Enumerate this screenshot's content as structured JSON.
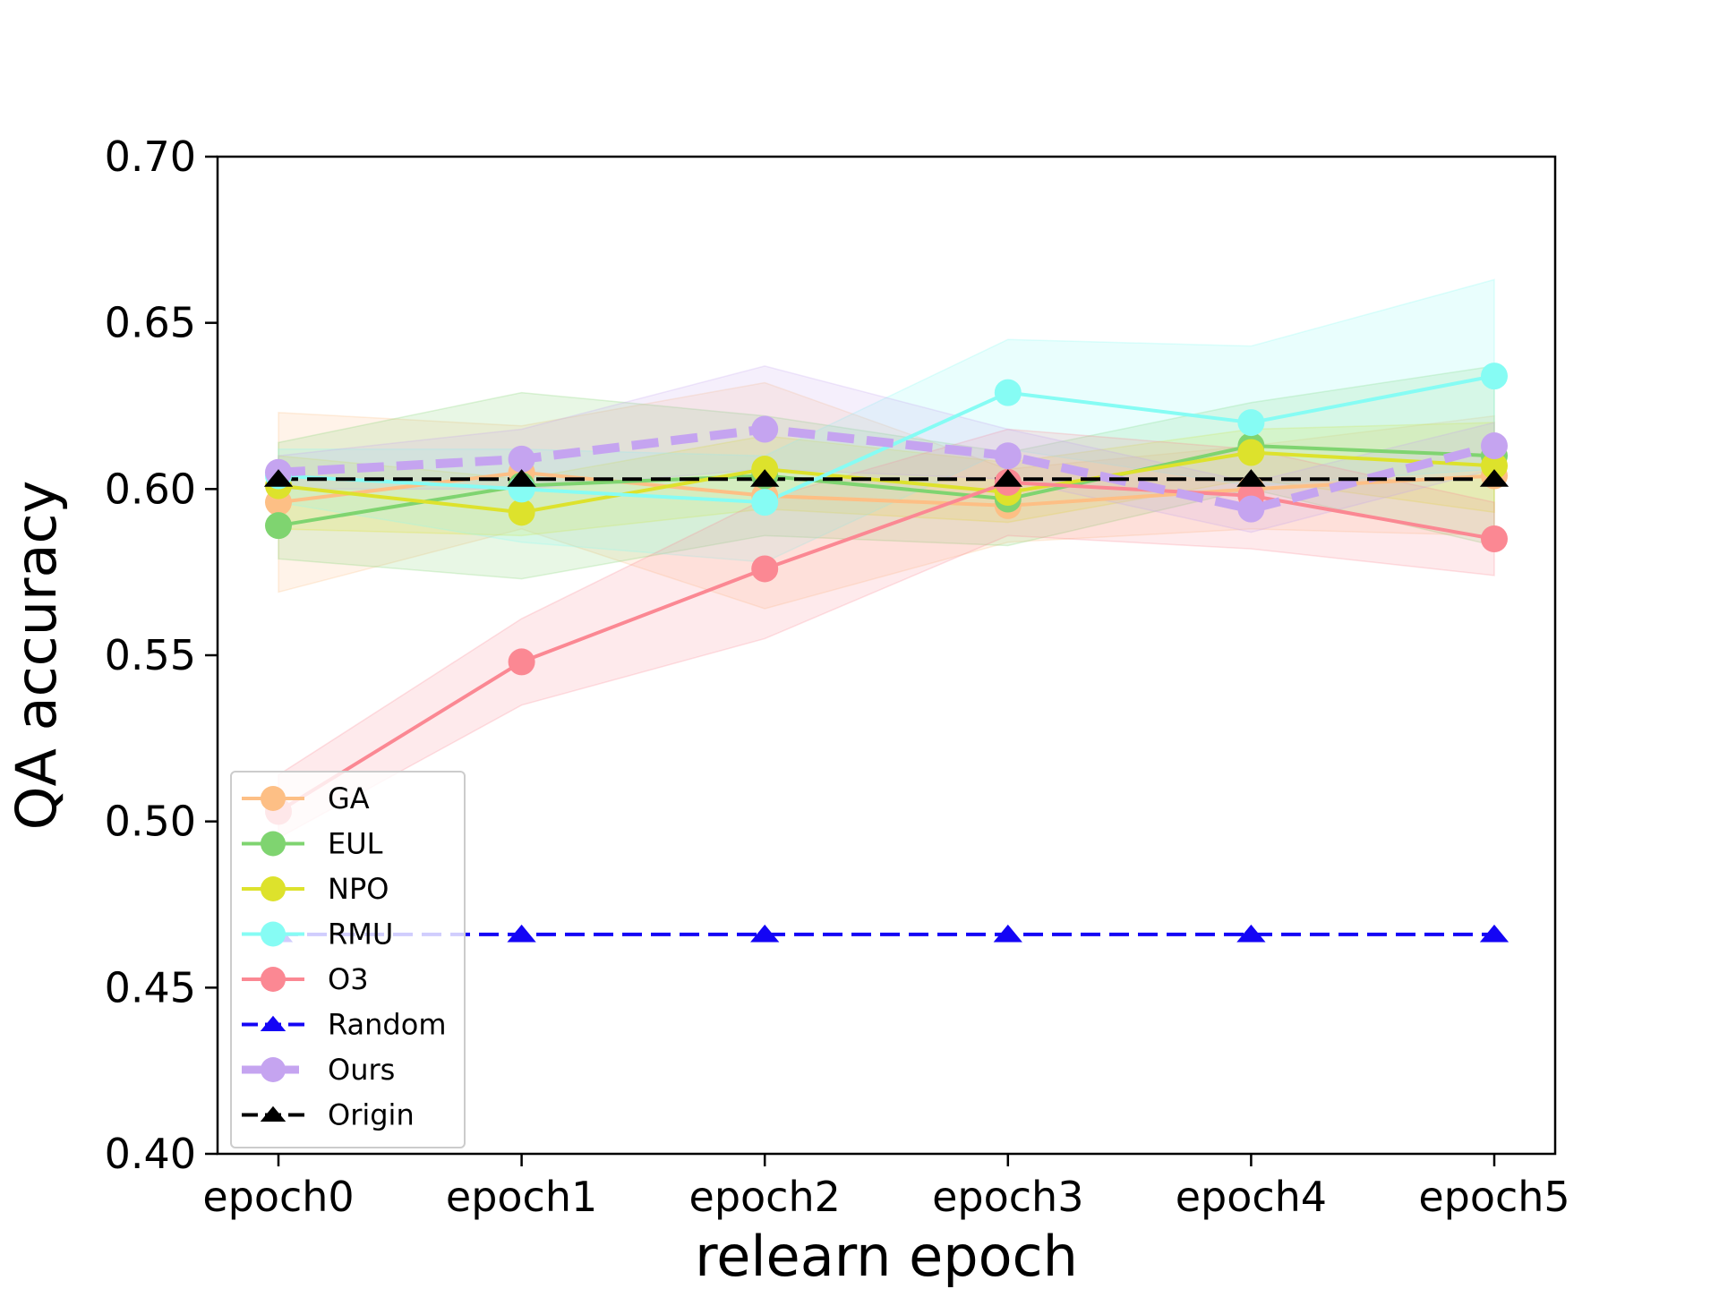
{
  "chart_data": {
    "type": "line",
    "title": "",
    "xlabel": "relearn epoch",
    "ylabel": "QA accuracy",
    "categories": [
      "epoch0",
      "epoch1",
      "epoch2",
      "epoch3",
      "epoch4",
      "epoch5"
    ],
    "ylim": [
      0.4,
      0.7
    ],
    "yticks": [
      0.4,
      0.45,
      0.5,
      0.55,
      0.6,
      0.65,
      0.7
    ],
    "ytick_labels": [
      "0.40",
      "0.45",
      "0.50",
      "0.55",
      "0.60",
      "0.65",
      "0.70"
    ],
    "grid": false,
    "legend_position": "lower-left",
    "series": [
      {
        "name": "GA",
        "color": "#fdbf85",
        "marker": "circle",
        "dashed": false,
        "values": [
          0.596,
          0.605,
          0.598,
          0.595,
          0.6,
          0.604
        ],
        "band_low": [
          0.569,
          0.588,
          0.564,
          0.584,
          0.588,
          0.586
        ],
        "band_high": [
          0.623,
          0.619,
          0.632,
          0.606,
          0.613,
          0.622
        ]
      },
      {
        "name": "EUL",
        "color": "#7fd470",
        "marker": "circle",
        "dashed": false,
        "values": [
          0.589,
          0.601,
          0.604,
          0.597,
          0.613,
          0.61
        ],
        "band_low": [
          0.579,
          0.573,
          0.586,
          0.583,
          0.6,
          0.583
        ],
        "band_high": [
          0.614,
          0.629,
          0.622,
          0.611,
          0.626,
          0.637
        ]
      },
      {
        "name": "NPO",
        "color": "#dde22c",
        "marker": "circle",
        "dashed": false,
        "values": [
          0.601,
          0.593,
          0.606,
          0.599,
          0.611,
          0.607
        ],
        "band_low": [
          0.588,
          0.586,
          0.594,
          0.59,
          0.603,
          0.593
        ],
        "band_high": [
          0.61,
          0.603,
          0.616,
          0.608,
          0.618,
          0.62
        ]
      },
      {
        "name": "RMU",
        "color": "#86fcf4",
        "marker": "circle",
        "dashed": false,
        "values": [
          0.604,
          0.6,
          0.596,
          0.629,
          0.62,
          0.634
        ],
        "band_low": [
          0.596,
          0.584,
          0.578,
          0.612,
          0.601,
          0.606
        ],
        "band_high": [
          0.612,
          0.612,
          0.61,
          0.645,
          0.643,
          0.663
        ]
      },
      {
        "name": "O3",
        "color": "#fb8893",
        "marker": "circle",
        "dashed": false,
        "values": [
          0.503,
          0.548,
          0.576,
          0.602,
          0.598,
          0.585
        ],
        "band_low": [
          0.495,
          0.535,
          0.555,
          0.586,
          0.582,
          0.574
        ],
        "band_high": [
          0.514,
          0.561,
          0.597,
          0.618,
          0.612,
          0.596
        ]
      },
      {
        "name": "Random",
        "color": "#1405f5",
        "marker": "triangle",
        "dashed": true,
        "values": [
          0.466,
          0.466,
          0.466,
          0.466,
          0.466,
          0.466
        ]
      },
      {
        "name": "Ours",
        "color": "#c5a4f0",
        "marker": "circle",
        "dashed": true,
        "values": [
          0.605,
          0.609,
          0.618,
          0.61,
          0.594,
          0.613
        ],
        "band_low": [
          0.6,
          0.6,
          0.606,
          0.603,
          0.587,
          0.606
        ],
        "band_high": [
          0.61,
          0.618,
          0.637,
          0.618,
          0.602,
          0.62
        ]
      },
      {
        "name": "Origin",
        "color": "#000000",
        "marker": "triangle",
        "dashed": true,
        "values": [
          0.603,
          0.603,
          0.603,
          0.603,
          0.603,
          0.603
        ]
      }
    ]
  }
}
